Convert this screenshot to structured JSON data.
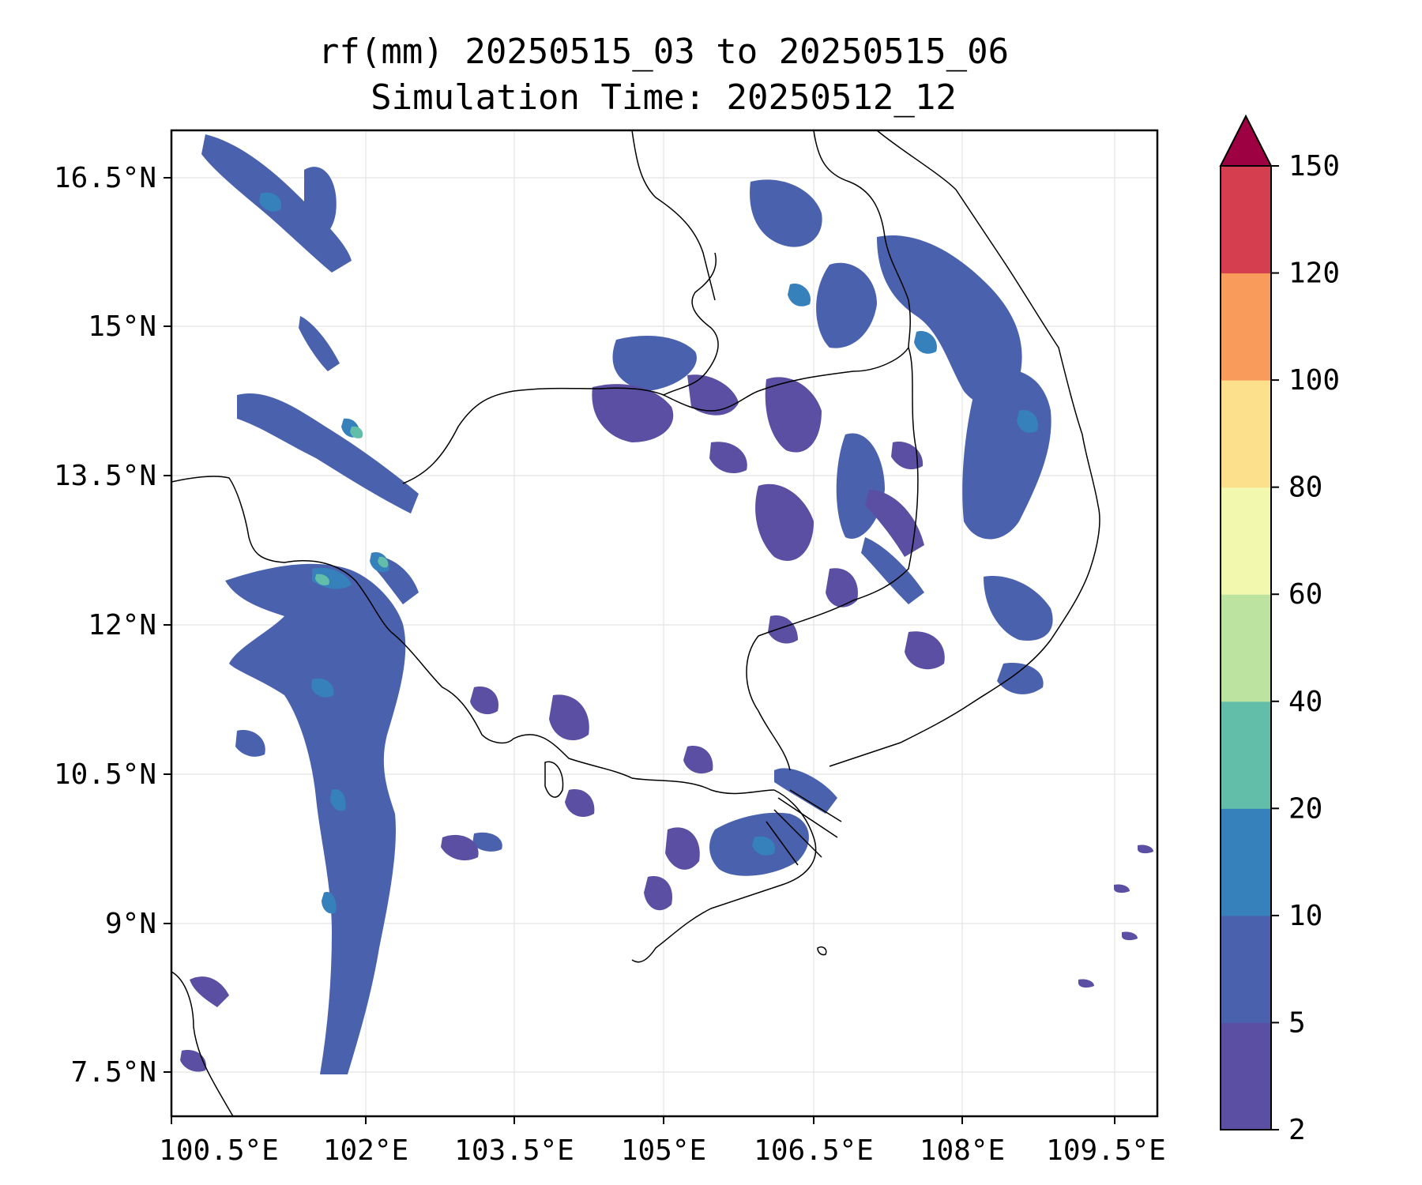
{
  "title": {
    "line1": "rf(mm) 20250515_03 to 20250515_06",
    "line2": "Simulation Time: 20250512_12"
  },
  "map": {
    "x_ticks": [
      "100.5°E",
      "102°E",
      "103.5°E",
      "105°E",
      "106.5°E",
      "108°E",
      "109.5°E"
    ],
    "y_ticks": [
      "16.5°N",
      "15°N",
      "13.5°N",
      "12°N",
      "10.5°N",
      "9°N",
      "7.5°N"
    ],
    "gridlines": true,
    "background": "#ffffff"
  },
  "colorbar": {
    "levels": [
      "2",
      "5",
      "10",
      "20",
      "40",
      "60",
      "80",
      "100",
      "120",
      "150"
    ],
    "colors": [
      "#5a4fa2",
      "#4a62ae",
      "#3680bb",
      "#62bea9",
      "#bde3a0",
      "#f2f8ad",
      "#fde08b",
      "#f99b5a",
      "#d53e4f"
    ],
    "extend_color": "#9e0142",
    "extend": "max"
  }
}
